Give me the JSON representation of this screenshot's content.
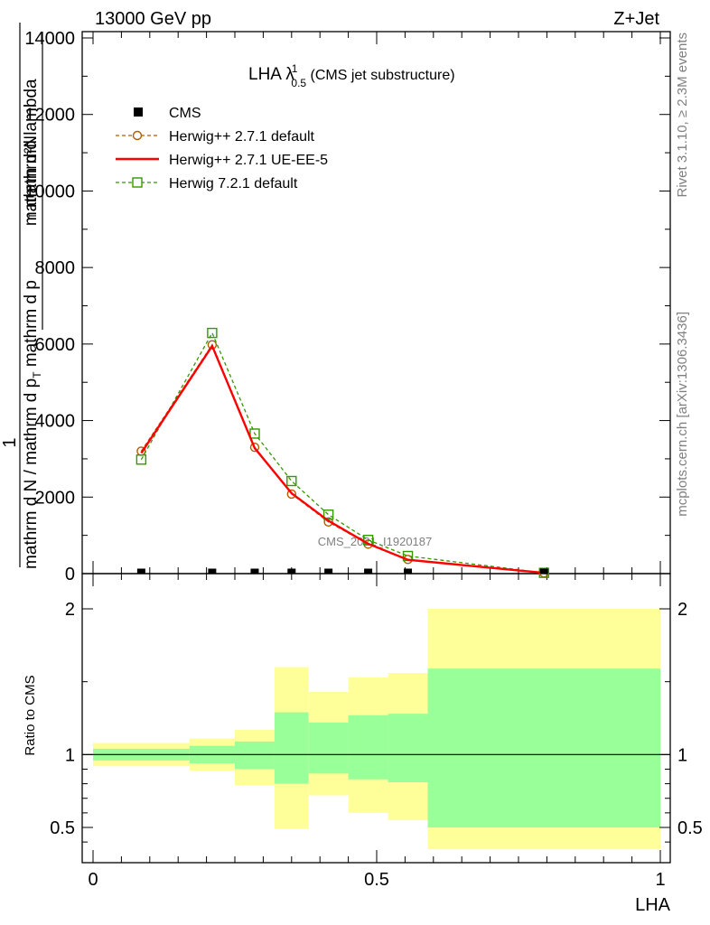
{
  "header": {
    "left": "13000 GeV pp",
    "right": "Z+Jet"
  },
  "side": {
    "rivet": "Rivet 3.1.10, ≥ 2.3M events",
    "mcplots": "mcplots.cern.ch [arXiv:1306.3436]"
  },
  "watermark": "CMS_2021_I1920187",
  "colors": {
    "herwig_default": "#b35900",
    "herwig_ueee5": "#ff0000",
    "herwig72": "#339900",
    "band_inner": "#99ff99",
    "band_outer": "#ffff99"
  },
  "chart_data": [
    {
      "type": "line",
      "title_main": "LHA λ",
      "title_sup": "1",
      "title_sub": "0.5",
      "title_tail": " (CMS jet substructure)",
      "ylabel_top": "1",
      "ylabel_num": "mathrm d²N",
      "ylabel_den": "mathrm d N / mathrm d p",
      "ylabel_den_sub": "T",
      "ylabel_den_tail": " mathrm d p",
      "ylabel_den2_sub": "T",
      "ylabel_den_end": " mathrmd lambda",
      "xlim": [
        0,
        1
      ],
      "ylim": [
        0,
        14000
      ],
      "yticks": [
        0,
        2000,
        4000,
        6000,
        8000,
        10000,
        12000,
        14000
      ],
      "ytick_labels": [
        "0",
        "2000",
        "4000",
        "6000",
        "8000",
        "10000",
        "12000",
        "14000"
      ],
      "legend_position": "top-left",
      "series": [
        {
          "name": "CMS",
          "style": "marker-square",
          "x": [
            0.085,
            0.21,
            0.285,
            0.35,
            0.415,
            0.485,
            0.555,
            0.795
          ],
          "y": [
            0,
            0,
            0,
            0,
            0,
            0,
            0,
            0
          ]
        },
        {
          "name": "Herwig++ 2.7.1 default",
          "style": "dashed-circle",
          "x": [
            0.085,
            0.21,
            0.285,
            0.35,
            0.415,
            0.485,
            0.555,
            0.795
          ],
          "y": [
            3200,
            5980,
            3300,
            2080,
            1350,
            770,
            370,
            20
          ]
        },
        {
          "name": "Herwig++ 2.7.1 UE-EE-5",
          "style": "solid",
          "x": [
            0.085,
            0.21,
            0.285,
            0.35,
            0.415,
            0.485,
            0.555,
            0.795
          ],
          "y": [
            3150,
            5950,
            3280,
            2100,
            1380,
            780,
            360,
            20
          ]
        },
        {
          "name": "Herwig 7.2.1 default",
          "style": "dashed-square",
          "x": [
            0.085,
            0.21,
            0.285,
            0.35,
            0.415,
            0.485,
            0.555,
            0.795
          ],
          "y": [
            2980,
            6290,
            3660,
            2420,
            1540,
            880,
            460,
            20
          ]
        }
      ]
    },
    {
      "type": "area",
      "ylabel": "Ratio to CMS",
      "xlabel": "LHA",
      "xlim": [
        0,
        1
      ],
      "ylim": [
        0.35,
        2.25
      ],
      "xticks": [
        0,
        0.5,
        1
      ],
      "xtick_labels": [
        "0",
        "0.5",
        "1"
      ],
      "yticks": [
        0.5,
        1,
        2
      ],
      "ytick_labels": [
        "0.5",
        "1",
        "2"
      ],
      "reference_line": 1,
      "bins": [
        {
          "x0": 0.0,
          "x1": 0.17,
          "inner": [
            0.96,
            1.04
          ],
          "outer": [
            0.92,
            1.08
          ]
        },
        {
          "x0": 0.17,
          "x1": 0.25,
          "inner": [
            0.94,
            1.06
          ],
          "outer": [
            0.89,
            1.11
          ]
        },
        {
          "x0": 0.25,
          "x1": 0.32,
          "inner": [
            0.9,
            1.09
          ],
          "outer": [
            0.79,
            1.17
          ]
        },
        {
          "x0": 0.32,
          "x1": 0.38,
          "inner": [
            0.8,
            1.29
          ],
          "outer": [
            0.49,
            1.6
          ]
        },
        {
          "x0": 0.38,
          "x1": 0.45,
          "inner": [
            0.87,
            1.22
          ],
          "outer": [
            0.72,
            1.43
          ]
        },
        {
          "x0": 0.45,
          "x1": 0.52,
          "inner": [
            0.83,
            1.27
          ],
          "outer": [
            0.6,
            1.53
          ]
        },
        {
          "x0": 0.52,
          "x1": 0.59,
          "inner": [
            0.81,
            1.28
          ],
          "outer": [
            0.55,
            1.56
          ]
        },
        {
          "x0": 0.59,
          "x1": 1.0,
          "inner": [
            0.5,
            1.59
          ],
          "outer": [
            0.35,
            2.0
          ]
        }
      ]
    }
  ]
}
